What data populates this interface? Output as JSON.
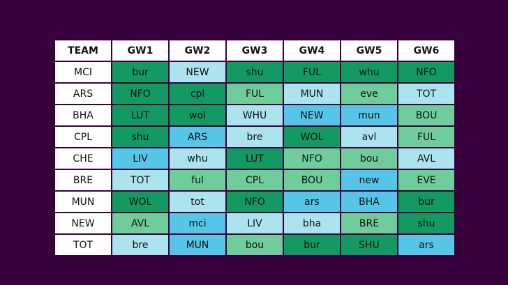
{
  "colors": {
    "background": "#37003c",
    "header_bg": "#ffffff",
    "dark_green": "#139a62",
    "medium_green": "#6fcc9b",
    "light_blue": "#abe3ef",
    "blue": "#55c6e8"
  },
  "table": {
    "headers": [
      "TEAM",
      "GW1",
      "GW2",
      "GW3",
      "GW4",
      "GW5",
      "GW6"
    ],
    "rows": [
      {
        "team": "MCI",
        "fixtures": [
          {
            "text": "bur",
            "color": "dark"
          },
          {
            "text": "NEW",
            "color": "light"
          },
          {
            "text": "shu",
            "color": "dark"
          },
          {
            "text": "FUL",
            "color": "dark"
          },
          {
            "text": "whu",
            "color": "dark"
          },
          {
            "text": "NFO",
            "color": "dark"
          }
        ]
      },
      {
        "team": "ARS",
        "fixtures": [
          {
            "text": "NFO",
            "color": "dark"
          },
          {
            "text": "cpl",
            "color": "dark"
          },
          {
            "text": "FUL",
            "color": "med"
          },
          {
            "text": "MUN",
            "color": "light"
          },
          {
            "text": "eve",
            "color": "med"
          },
          {
            "text": "TOT",
            "color": "light"
          }
        ]
      },
      {
        "team": "BHA",
        "fixtures": [
          {
            "text": "LUT",
            "color": "dark"
          },
          {
            "text": "wol",
            "color": "dark"
          },
          {
            "text": "WHU",
            "color": "light"
          },
          {
            "text": "NEW",
            "color": "blue"
          },
          {
            "text": "mun",
            "color": "blue"
          },
          {
            "text": "BOU",
            "color": "med"
          }
        ]
      },
      {
        "team": "CPL",
        "fixtures": [
          {
            "text": "shu",
            "color": "dark"
          },
          {
            "text": "ARS",
            "color": "blue"
          },
          {
            "text": "bre",
            "color": "light"
          },
          {
            "text": "WOL",
            "color": "dark"
          },
          {
            "text": "avl",
            "color": "light"
          },
          {
            "text": "FUL",
            "color": "med"
          }
        ]
      },
      {
        "team": "CHE",
        "fixtures": [
          {
            "text": "LIV",
            "color": "blue"
          },
          {
            "text": "whu",
            "color": "light"
          },
          {
            "text": "LUT",
            "color": "dark"
          },
          {
            "text": "NFO",
            "color": "med"
          },
          {
            "text": "bou",
            "color": "med"
          },
          {
            "text": "AVL",
            "color": "light"
          }
        ]
      },
      {
        "team": "BRE",
        "fixtures": [
          {
            "text": "TOT",
            "color": "light"
          },
          {
            "text": "ful",
            "color": "med"
          },
          {
            "text": "CPL",
            "color": "med"
          },
          {
            "text": "BOU",
            "color": "med"
          },
          {
            "text": "new",
            "color": "blue"
          },
          {
            "text": "EVE",
            "color": "med"
          }
        ]
      },
      {
        "team": "MUN",
        "fixtures": [
          {
            "text": "WOL",
            "color": "dark"
          },
          {
            "text": "tot",
            "color": "light"
          },
          {
            "text": "NFO",
            "color": "dark"
          },
          {
            "text": "ars",
            "color": "blue"
          },
          {
            "text": "BHA",
            "color": "blue"
          },
          {
            "text": "bur",
            "color": "dark"
          }
        ]
      },
      {
        "team": "NEW",
        "fixtures": [
          {
            "text": "AVL",
            "color": "med"
          },
          {
            "text": "mci",
            "color": "blue"
          },
          {
            "text": "LIV",
            "color": "light"
          },
          {
            "text": "bha",
            "color": "light"
          },
          {
            "text": "BRE",
            "color": "med"
          },
          {
            "text": "shu",
            "color": "dark"
          }
        ]
      },
      {
        "team": "TOT",
        "fixtures": [
          {
            "text": "bre",
            "color": "light"
          },
          {
            "text": "MUN",
            "color": "blue"
          },
          {
            "text": "bou",
            "color": "med"
          },
          {
            "text": "bur",
            "color": "dark"
          },
          {
            "text": "SHU",
            "color": "dark"
          },
          {
            "text": "ars",
            "color": "blue"
          }
        ]
      }
    ]
  }
}
